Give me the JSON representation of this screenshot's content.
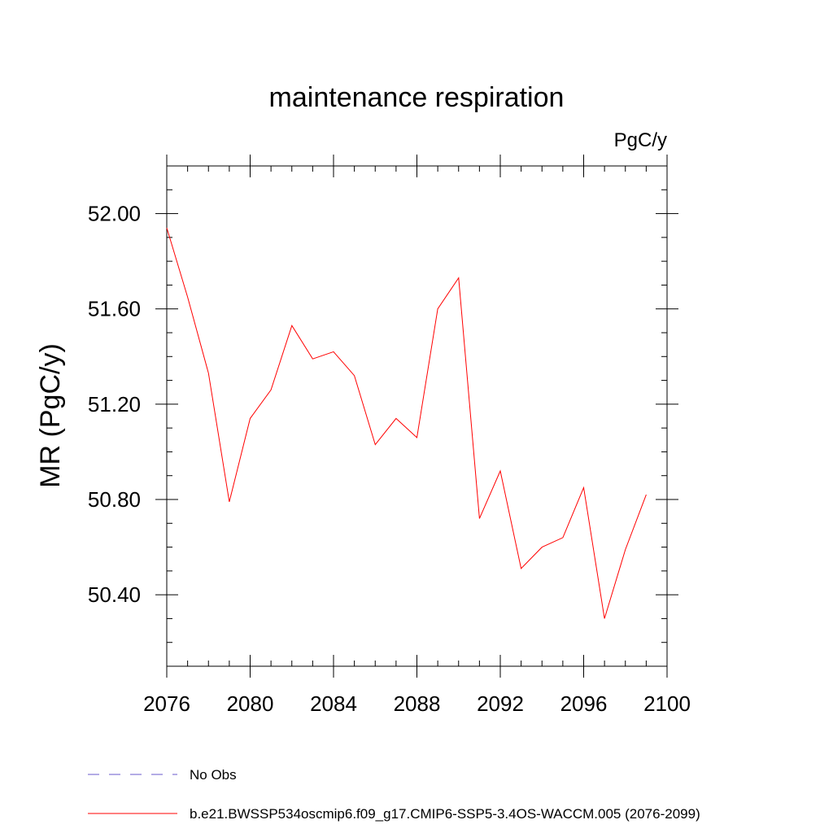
{
  "chart_data": {
    "type": "line",
    "title": "maintenance respiration",
    "units": "PgC/y",
    "ylabel": "MR  (PgC/y)",
    "xlabel": "",
    "xlim": [
      2076,
      2100
    ],
    "ylim": [
      50.1,
      52.2
    ],
    "x_ticks": [
      "2076",
      "2080",
      "2084",
      "2088",
      "2092",
      "2096",
      "2100"
    ],
    "y_ticks": [
      "52.00",
      "51.60",
      "51.20",
      "50.80",
      "50.40"
    ],
    "grid": false,
    "legend_position": "bottom-left",
    "series": [
      {
        "name": "b.e21.BWSSP534oscmip6.f09_g17.CMIP6-SSP5-3.4OS-WACCM.005 (2076-2099)",
        "color": "#ff0000",
        "style": "solid",
        "x": [
          2076,
          2077,
          2078,
          2079,
          2080,
          2081,
          2082,
          2083,
          2084,
          2085,
          2086,
          2087,
          2088,
          2089,
          2090,
          2091,
          2092,
          2093,
          2094,
          2095,
          2096,
          2097,
          2098,
          2099
        ],
        "y": [
          51.94,
          51.65,
          51.33,
          50.79,
          51.14,
          51.26,
          51.53,
          51.39,
          51.42,
          51.32,
          51.03,
          51.14,
          51.06,
          51.6,
          51.73,
          50.72,
          50.92,
          50.51,
          50.6,
          50.64,
          50.85,
          50.3,
          50.59,
          50.82
        ]
      }
    ],
    "legend": [
      {
        "label": "No Obs",
        "color": "#6a5acd",
        "style": "dashed"
      },
      {
        "label": "b.e21.BWSSP534oscmip6.f09_g17.CMIP6-SSP5-3.4OS-WACCM.005 (2076-2099)",
        "color": "#ff0000",
        "style": "solid"
      }
    ]
  }
}
